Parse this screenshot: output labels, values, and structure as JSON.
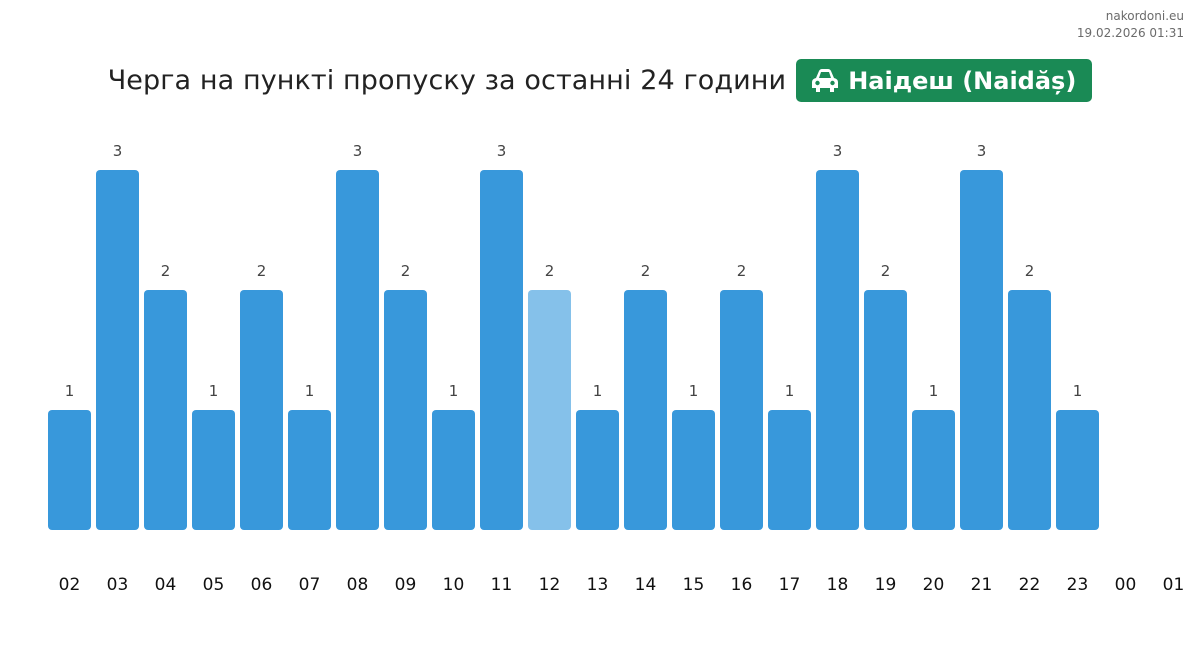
{
  "site": {
    "name": "nakordoni.eu",
    "timestamp": "19.02.2026 01:31"
  },
  "header": {
    "title": "Черга на пункті пропуску за останні 24 години",
    "crossing": "Наідеш (Naidăș)",
    "crossing_icon": "car-icon",
    "badge_color": "#1a8a55"
  },
  "chart_data": {
    "type": "bar",
    "categories": [
      "02",
      "03",
      "04",
      "05",
      "06",
      "07",
      "08",
      "09",
      "10",
      "11",
      "12",
      "13",
      "14",
      "15",
      "16",
      "17",
      "18",
      "19",
      "20",
      "21",
      "22",
      "23",
      "00",
      "01"
    ],
    "values": [
      1,
      3,
      2,
      1,
      2,
      1,
      3,
      2,
      1,
      3,
      2,
      1,
      2,
      1,
      2,
      1,
      3,
      2,
      1,
      3,
      2,
      1,
      null,
      null
    ],
    "highlight_category": "12",
    "ylim": [
      0,
      3
    ],
    "grid": false,
    "title": "",
    "xlabel": "",
    "ylabel": "",
    "colors": {
      "bar": "#3898db",
      "highlight": "#85c1ea",
      "label": "#444444",
      "tick": "#111111"
    }
  }
}
